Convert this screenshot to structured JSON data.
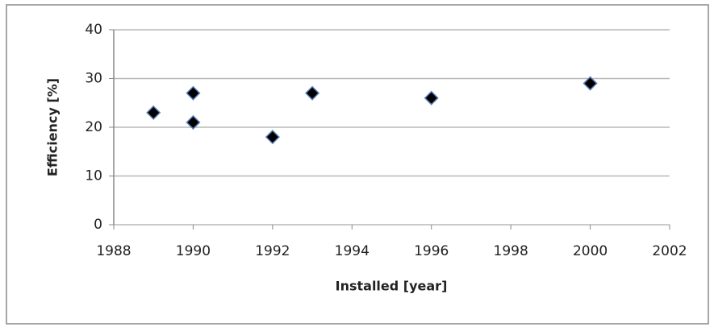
{
  "chart_data": {
    "type": "scatter",
    "x_label": "Installed [year]",
    "y_label": "Efficiency [%]",
    "series": [
      {
        "color": "#000000",
        "x": [
          1989,
          1990,
          1990,
          1992,
          1993,
          1996,
          2000
        ],
        "values": [
          23,
          27,
          21,
          18,
          27,
          26,
          29
        ]
      }
    ],
    "xlim": [
      1988,
      2002
    ],
    "xticks": [
      1988,
      1990,
      1992,
      1994,
      1996,
      1998,
      2000,
      2002
    ],
    "ylim": [
      0,
      40
    ],
    "yticks": [
      0,
      10,
      20,
      30,
      40
    ],
    "grid": true
  }
}
